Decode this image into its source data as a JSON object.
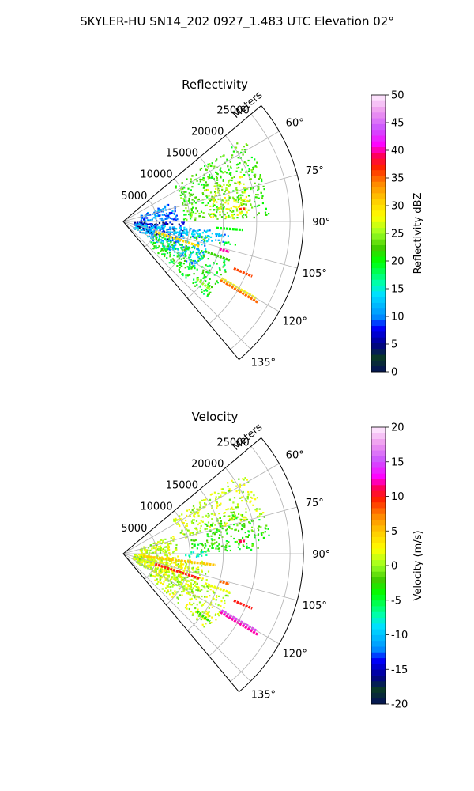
{
  "figure": {
    "title": "SKYLER-HU  SN14_202  0927_1.483 UTC Elevation 02°"
  },
  "chart_data": [
    {
      "type": "heatmap",
      "subtype": "polar sector (radar PPI)",
      "title": "Reflectivity",
      "range_label": "Meters",
      "range_tick_labels": [
        "5000",
        "10000",
        "15000",
        "20000",
        "25000"
      ],
      "range_ticks": [
        5000,
        10000,
        15000,
        20000,
        25000
      ],
      "range_max": 27000,
      "azimuth_range": [
        50,
        140
      ],
      "azimuth_tick_labels": [
        "60°",
        "75°",
        "90°",
        "105°",
        "120°",
        "135°"
      ],
      "azimuth_ticks": [
        60,
        75,
        90,
        105,
        120,
        135
      ],
      "grid": true,
      "colorbar": {
        "label": "Reflectivity dBZ",
        "range": [
          0,
          50
        ],
        "tick_labels": [
          "0",
          "5",
          "10",
          "15",
          "20",
          "25",
          "30",
          "35",
          "40",
          "45",
          "50"
        ],
        "ticks": [
          0,
          5,
          10,
          15,
          20,
          25,
          30,
          35,
          40,
          45,
          50
        ]
      },
      "echo_regions": [
        {
          "az": [
            55,
            88
          ],
          "r": [
            9000,
            22000
          ],
          "value": 22
        },
        {
          "az": [
            68,
            88
          ],
          "r": [
            13000,
            19000
          ],
          "value": 27
        },
        {
          "az": [
            63,
            68
          ],
          "r": [
            20000,
            21500
          ],
          "value": 20
        },
        {
          "az": [
            68,
            88
          ],
          "r": [
            2500,
            8000
          ],
          "value": 10
        },
        {
          "az": [
            90,
            112
          ],
          "r": [
            1500,
            9000
          ],
          "value": 6
        },
        {
          "az": [
            95,
            122
          ],
          "r": [
            1500,
            13000
          ],
          "value": 12
        },
        {
          "az": [
            110,
            132
          ],
          "r": [
            5000,
            17000
          ],
          "value": 20
        },
        {
          "az": [
            96,
            102
          ],
          "r": [
            4000,
            16000
          ],
          "value": 12
        },
        {
          "az": [
            100,
            103
          ],
          "r": [
            10000,
            18000
          ],
          "value": 21
        }
      ],
      "echo_lines": [
        {
          "az": 121,
          "r": [
            17000,
            23500
          ],
          "value": 35
        },
        {
          "az": 120,
          "r": [
            17000,
            23000
          ],
          "value": 28
        },
        {
          "az": 113,
          "r": [
            18000,
            21000
          ],
          "value": 36
        },
        {
          "az": 106,
          "r": [
            15000,
            16500
          ],
          "value": 40
        },
        {
          "az": 110,
          "r": [
            13000,
            17000
          ],
          "value": 22
        },
        {
          "az": 94,
          "r": [
            14000,
            18000
          ],
          "value": 20
        },
        {
          "az": 108,
          "r": [
            5000,
            12000
          ],
          "value": 30
        },
        {
          "az": 84,
          "r": [
            17500,
            18500
          ],
          "value": 37
        },
        {
          "az": 128,
          "r": [
            14000,
            16500
          ],
          "value": 25
        }
      ]
    },
    {
      "type": "heatmap",
      "subtype": "polar sector (radar PPI)",
      "title": "Velocity",
      "range_label": "Meters",
      "range_tick_labels": [
        "5000",
        "10000",
        "15000",
        "20000",
        "25000"
      ],
      "range_ticks": [
        5000,
        10000,
        15000,
        20000,
        25000
      ],
      "range_max": 27000,
      "azimuth_range": [
        50,
        140
      ],
      "azimuth_tick_labels": [
        "60°",
        "75°",
        "90°",
        "105°",
        "120°",
        "135°"
      ],
      "azimuth_ticks": [
        60,
        75,
        90,
        105,
        120,
        135
      ],
      "grid": true,
      "colorbar": {
        "label": "Velocity (m/s)",
        "range": [
          -20,
          20
        ],
        "tick_labels": [
          "-20",
          "-15",
          "-10",
          "-5",
          "0",
          "5",
          "10",
          "15",
          "20"
        ],
        "ticks": [
          -20,
          -15,
          -10,
          -5,
          0,
          5,
          10,
          15,
          20
        ]
      },
      "echo_regions": [
        {
          "az": [
            55,
            75
          ],
          "r": [
            9000,
            22000
          ],
          "value": 1
        },
        {
          "az": [
            75,
            88
          ],
          "r": [
            10000,
            22000
          ],
          "value": -3
        },
        {
          "az": [
            68,
            78
          ],
          "r": [
            13000,
            19000
          ],
          "value": -2
        },
        {
          "az": [
            63,
            68
          ],
          "r": [
            20000,
            21500
          ],
          "value": 1
        },
        {
          "az": [
            68,
            88
          ],
          "r": [
            2500,
            8000
          ],
          "value": 1
        },
        {
          "az": [
            90,
            112
          ],
          "r": [
            1500,
            9000
          ],
          "value": 2
        },
        {
          "az": [
            95,
            122
          ],
          "r": [
            1500,
            13000
          ],
          "value": 1
        },
        {
          "az": [
            110,
            132
          ],
          "r": [
            5000,
            17000
          ],
          "value": 1
        },
        {
          "az": [
            88,
            92
          ],
          "r": [
            9000,
            13000
          ],
          "value": -8
        }
      ],
      "echo_lines": [
        {
          "az": 121,
          "r": [
            17000,
            23500
          ],
          "value": 12
        },
        {
          "az": 120,
          "r": [
            17000,
            23000
          ],
          "value": 14
        },
        {
          "az": 113,
          "r": [
            18000,
            21000
          ],
          "value": 10
        },
        {
          "az": 106,
          "r": [
            15000,
            16500
          ],
          "value": 8
        },
        {
          "az": 110,
          "r": [
            13000,
            17000
          ],
          "value": 2
        },
        {
          "az": 97,
          "r": [
            3000,
            14000
          ],
          "value": 5
        },
        {
          "az": 108,
          "r": [
            5000,
            12000
          ],
          "value": 10
        },
        {
          "az": 84,
          "r": [
            17500,
            18500
          ],
          "value": 11
        },
        {
          "az": 128,
          "r": [
            14000,
            16500
          ],
          "value": -3
        }
      ]
    }
  ]
}
